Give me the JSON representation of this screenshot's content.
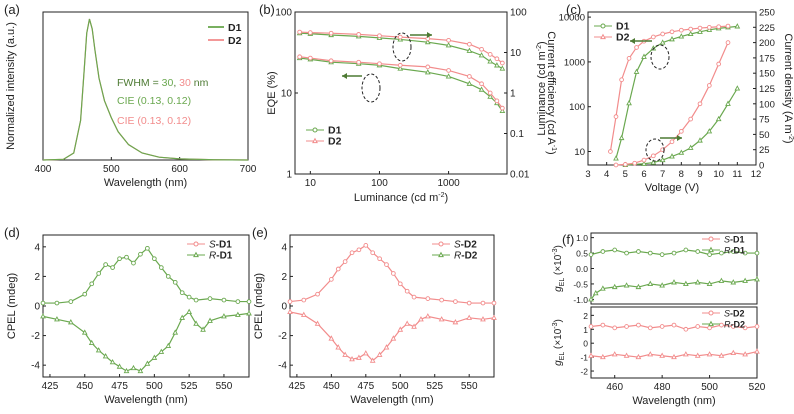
{
  "colors": {
    "d1": "#6aa84f",
    "d2": "#f28c8c",
    "ink": "#222222",
    "grid": "#999999"
  },
  "chart_data": [
    {
      "id": "a",
      "panel_label": "(a)",
      "type": "line",
      "xlabel": "Wavelength (nm)",
      "ylabel": "Normalized intensity (a.u.)",
      "xlim": [
        400,
        700
      ],
      "xticks": [
        400,
        500,
        600,
        700
      ],
      "ylim": [
        0,
        1.05
      ],
      "yticks_shown": false,
      "legend": {
        "position": "top-right",
        "entries": [
          "D1",
          "D2"
        ]
      },
      "annotations": {
        "fwhm_prefix": "FWHM = ",
        "fwhm_d1": "30",
        "fwhm_sep": ", ",
        "fwhm_d2": "30",
        "fwhm_unit": " nm",
        "cie_d1": "CIE (0.13, 0.12)",
        "cie_d2": "CIE (0.13, 0.12)"
      },
      "series": [
        {
          "name": "D1",
          "x": [
            400,
            430,
            445,
            455,
            460,
            464,
            468,
            472,
            476,
            482,
            490,
            500,
            510,
            525,
            545,
            570,
            600,
            650,
            700
          ],
          "y": [
            0,
            0.005,
            0.05,
            0.28,
            0.62,
            0.9,
            1.0,
            0.93,
            0.78,
            0.58,
            0.42,
            0.3,
            0.2,
            0.11,
            0.05,
            0.02,
            0.008,
            0.002,
            0
          ]
        },
        {
          "name": "D2",
          "x": [
            400,
            430,
            445,
            455,
            460,
            464,
            468,
            472,
            476,
            482,
            490,
            500,
            510,
            525,
            545,
            570,
            600,
            650,
            700
          ],
          "y": [
            0,
            0.005,
            0.05,
            0.28,
            0.62,
            0.9,
            1.0,
            0.93,
            0.78,
            0.58,
            0.42,
            0.3,
            0.2,
            0.11,
            0.05,
            0.02,
            0.008,
            0.002,
            0
          ]
        }
      ]
    },
    {
      "id": "b",
      "panel_label": "(b)",
      "type": "scatter",
      "xlabel": "Luminance (cd m",
      "xlabel_sup": "-2",
      "xlabel_end": ")",
      "ylabel": "EQE (%)",
      "y2label": "Current efficiency (cd A",
      "y2label_sup": "-1",
      "y2label_end": ")",
      "xscale": "log",
      "xlim": [
        6,
        7000
      ],
      "xticks": [
        10,
        100,
        1000
      ],
      "xtick_labels": [
        "10",
        "100",
        "1000"
      ],
      "yscale": "log",
      "ylim": [
        1,
        100
      ],
      "yticks": [
        1,
        10,
        100
      ],
      "ytick_labels": [
        "1",
        "10",
        "100"
      ],
      "y2scale": "log",
      "y2lim": [
        0.01,
        100
      ],
      "y2ticks": [
        0.01,
        0.1,
        1,
        10,
        100
      ],
      "y2tick_labels": [
        "0.01",
        "0.1",
        "1",
        "10",
        "100"
      ],
      "legend": {
        "position": "bottom-left",
        "entries": [
          "D1",
          "D2"
        ]
      },
      "series": [
        {
          "name": "D1",
          "axis": "y",
          "x": [
            7,
            10,
            20,
            50,
            100,
            200,
            500,
            1000,
            2000,
            3000,
            4000,
            5000,
            6000
          ],
          "y": [
            27,
            26,
            24,
            23,
            22,
            20,
            18,
            16,
            13,
            11,
            9,
            7.5,
            6
          ]
        },
        {
          "name": "D2",
          "axis": "y",
          "x": [
            7,
            10,
            20,
            50,
            100,
            200,
            500,
            1000,
            2000,
            3000,
            4000,
            5000,
            6000
          ],
          "y": [
            28,
            27,
            25,
            24,
            23,
            22,
            21,
            19,
            16,
            13,
            10,
            8,
            6.5
          ]
        },
        {
          "name": "D1",
          "axis": "y2",
          "x": [
            7,
            10,
            20,
            50,
            100,
            200,
            500,
            1000,
            2000,
            3000,
            4000,
            5000,
            6000
          ],
          "y": [
            30,
            29,
            27,
            25,
            23,
            21,
            18,
            15,
            11,
            8.5,
            6,
            4.8,
            4
          ]
        },
        {
          "name": "D2",
          "axis": "y2",
          "x": [
            7,
            10,
            20,
            50,
            100,
            200,
            500,
            1000,
            2000,
            3000,
            4000,
            5000,
            6000
          ],
          "y": [
            32,
            31,
            30,
            28,
            26,
            24,
            22,
            20,
            16,
            12,
            9,
            7,
            5.5
          ]
        }
      ]
    },
    {
      "id": "c",
      "panel_label": "(c)",
      "type": "scatter",
      "xlabel": "Voltage (V)",
      "ylabel": "Luminance (cd m",
      "ylabel_sup": "-2",
      "ylabel_end": ")",
      "y2label": "Current density (A m",
      "y2label_sup": "-2",
      "y2label_end": ")",
      "xlim": [
        3,
        12
      ],
      "xticks": [
        3,
        4,
        5,
        6,
        7,
        8,
        9,
        10,
        11,
        12
      ],
      "yscale": "log",
      "ylim": [
        5,
        13000
      ],
      "yticks": [
        10,
        100,
        1000,
        10000
      ],
      "ytick_labels": [
        "10",
        "100",
        "1000",
        "10000"
      ],
      "y2lim": [
        0,
        250
      ],
      "y2ticks": [
        0,
        25,
        50,
        75,
        100,
        125,
        150,
        175,
        200,
        225,
        250
      ],
      "legend": {
        "position": "top-left",
        "entries": [
          "D1",
          "D2"
        ]
      },
      "series": [
        {
          "name": "D1",
          "axis": "y",
          "x": [
            4.5,
            4.8,
            5.2,
            5.6,
            6,
            6.5,
            7,
            7.5,
            8,
            8.5,
            9,
            9.5,
            10,
            10.5,
            11
          ],
          "y": [
            7,
            20,
            120,
            600,
            1300,
            2000,
            2700,
            3200,
            3700,
            4200,
            4700,
            5200,
            5600,
            5900,
            6200
          ]
        },
        {
          "name": "D2",
          "axis": "y",
          "x": [
            4.2,
            4.5,
            4.8,
            5.2,
            5.6,
            6,
            6.5,
            7,
            7.5,
            8,
            8.5,
            9,
            9.5,
            10,
            10.5
          ],
          "y": [
            10,
            60,
            400,
            1200,
            2100,
            2900,
            3600,
            4200,
            4700,
            5100,
            5400,
            5700,
            5900,
            6100,
            6300
          ]
        },
        {
          "name": "D1",
          "axis": "y2",
          "x": [
            5,
            6,
            6.5,
            7,
            7.5,
            8,
            8.5,
            9,
            9.5,
            10,
            10.5,
            11
          ],
          "y": [
            0,
            2,
            4,
            8,
            14,
            20,
            28,
            40,
            55,
            75,
            100,
            125
          ]
        },
        {
          "name": "D2",
          "axis": "y2",
          "x": [
            4.5,
            5,
            5.5,
            6,
            6.5,
            7,
            7.5,
            8,
            8.5,
            9,
            9.5,
            10,
            10.5
          ],
          "y": [
            0,
            1,
            3,
            8,
            15,
            25,
            38,
            55,
            75,
            100,
            130,
            165,
            200
          ]
        }
      ]
    },
    {
      "id": "d",
      "panel_label": "(d)",
      "type": "line",
      "xlabel": "Wavelength (nm)",
      "ylabel": "CPEL (mdeg)",
      "xlim": [
        420,
        568
      ],
      "xticks": [
        425,
        450,
        475,
        500,
        525,
        550
      ],
      "ylim": [
        -4.8,
        4.8
      ],
      "yticks": [
        -4,
        -2,
        0,
        2,
        4
      ],
      "legend": {
        "position": "top-right",
        "entries": [
          {
            "italic": "S",
            "rest": "-D1"
          },
          {
            "italic": "R",
            "rest": "-D1"
          }
        ]
      },
      "series": [
        {
          "name": "S-D1",
          "x": [
            420,
            430,
            440,
            450,
            455,
            460,
            465,
            470,
            475,
            480,
            485,
            490,
            495,
            500,
            505,
            510,
            515,
            520,
            525,
            530,
            540,
            550,
            560,
            568
          ],
          "y": [
            0.2,
            0.2,
            0.3,
            0.8,
            1.5,
            2.2,
            2.8,
            2.6,
            3.2,
            3.3,
            2.9,
            3.5,
            3.9,
            3.2,
            2.6,
            2.0,
            1.6,
            0.9,
            0.6,
            0.4,
            0.5,
            0.4,
            0.3,
            0.3
          ]
        },
        {
          "name": "R-D1",
          "x": [
            420,
            430,
            440,
            450,
            455,
            460,
            465,
            470,
            475,
            480,
            485,
            490,
            495,
            500,
            505,
            510,
            515,
            520,
            525,
            530,
            535,
            540,
            550,
            560,
            568
          ],
          "y": [
            -0.7,
            -0.9,
            -1.1,
            -1.8,
            -2.5,
            -3.0,
            -3.4,
            -3.8,
            -4.1,
            -4.4,
            -4.2,
            -4.4,
            -3.9,
            -3.5,
            -3.1,
            -2.7,
            -1.8,
            -0.8,
            -0.4,
            -1.2,
            -1.6,
            -1.0,
            -0.7,
            -0.6,
            -0.5
          ]
        }
      ]
    },
    {
      "id": "e",
      "panel_label": "(e)",
      "type": "line",
      "xlabel": "Wavelength (nm)",
      "ylabel": "CPEL (mdeg)",
      "xlim": [
        420,
        568
      ],
      "xticks": [
        425,
        450,
        475,
        500,
        525,
        550
      ],
      "ylim": [
        -4.8,
        4.8
      ],
      "yticks": [
        -4,
        -2,
        0,
        2,
        4
      ],
      "legend": {
        "position": "top-right",
        "entries": [
          {
            "italic": "S",
            "rest": "-D2"
          },
          {
            "italic": "R",
            "rest": "-D2"
          }
        ]
      },
      "series": [
        {
          "name": "S-D2",
          "x": [
            420,
            430,
            440,
            450,
            455,
            460,
            465,
            470,
            475,
            480,
            485,
            490,
            495,
            500,
            505,
            510,
            520,
            530,
            540,
            550,
            560,
            568
          ],
          "y": [
            0.3,
            0.4,
            0.8,
            1.8,
            2.5,
            3.0,
            3.6,
            3.8,
            4.1,
            3.6,
            3.2,
            2.8,
            2.2,
            1.5,
            1.0,
            0.6,
            0.5,
            0.4,
            0.3,
            0.2,
            0.2,
            0.2
          ]
        },
        {
          "name": "R-D2",
          "x": [
            420,
            430,
            440,
            450,
            455,
            460,
            465,
            470,
            475,
            480,
            485,
            490,
            495,
            500,
            505,
            510,
            515,
            520,
            530,
            540,
            550,
            560,
            568
          ],
          "y": [
            -0.4,
            -0.6,
            -1.2,
            -2.2,
            -2.8,
            -3.3,
            -3.6,
            -3.5,
            -3.2,
            -3.7,
            -3.3,
            -2.8,
            -2.2,
            -1.6,
            -1.2,
            -1.4,
            -0.9,
            -0.7,
            -0.9,
            -1.1,
            -0.8,
            -0.9,
            -0.8
          ]
        }
      ]
    },
    {
      "id": "f_top",
      "panel_label": "(f)",
      "type": "line",
      "ylabel": "g",
      "ylabel_sub": "EL",
      "ylabel_suffix": " (×10",
      "ylabel_sup": "-3",
      "ylabel_end": ")",
      "xlim": [
        450,
        520
      ],
      "ylim": [
        -1.15,
        1.15
      ],
      "yticks": [
        -1.0,
        -0.5,
        0.0,
        0.5,
        1.0
      ],
      "ytick_labels": [
        "-1.0",
        "-0.5",
        "0.0",
        "0.5",
        "1.0"
      ],
      "legend": {
        "position": "top-right",
        "entries": [
          {
            "italic": "S",
            "rest": "-D1"
          },
          {
            "italic": "R",
            "rest": "-D1"
          }
        ]
      },
      "series": [
        {
          "name": "S-D1",
          "x": [
            450,
            455,
            460,
            465,
            470,
            475,
            480,
            485,
            490,
            495,
            500,
            505,
            510,
            515,
            520
          ],
          "y": [
            0.45,
            0.55,
            0.6,
            0.5,
            0.55,
            0.5,
            0.45,
            0.5,
            0.6,
            0.55,
            0.45,
            0.5,
            0.55,
            0.5,
            0.5
          ]
        },
        {
          "name": "R-D1",
          "x": [
            450,
            452,
            455,
            460,
            465,
            470,
            475,
            480,
            485,
            490,
            495,
            500,
            505,
            510,
            515,
            520
          ],
          "y": [
            -1.0,
            -0.8,
            -0.65,
            -0.6,
            -0.55,
            -0.6,
            -0.5,
            -0.55,
            -0.45,
            -0.5,
            -0.45,
            -0.5,
            -0.4,
            -0.45,
            -0.4,
            -0.35
          ]
        }
      ]
    },
    {
      "id": "f_bottom",
      "panel_label": "",
      "type": "line",
      "xlabel": "Wavelength (nm)",
      "ylabel": "g",
      "ylabel_sub": "EL",
      "ylabel_suffix": " (×10",
      "ylabel_sup": "-3",
      "ylabel_end": ")",
      "xlim": [
        450,
        520
      ],
      "xticks": [
        460,
        480,
        500,
        520
      ],
      "ylim": [
        -2.5,
        2.6
      ],
      "yticks": [
        -2,
        -1,
        0,
        1,
        2
      ],
      "legend": {
        "position": "top-right",
        "entries": [
          {
            "italic": "S",
            "rest": "-D2"
          },
          {
            "italic": "R",
            "rest": "-D2"
          }
        ]
      },
      "series": [
        {
          "name": "S-D2",
          "x": [
            450,
            455,
            460,
            465,
            470,
            475,
            480,
            485,
            490,
            495,
            500,
            505,
            510,
            515,
            520
          ],
          "y": [
            1.2,
            1.3,
            1.1,
            1.2,
            1.3,
            1.1,
            1.2,
            1.3,
            1.0,
            1.2,
            1.1,
            1.3,
            1.2,
            1.1,
            1.2
          ]
        },
        {
          "name": "R-D2",
          "x": [
            450,
            455,
            460,
            465,
            470,
            475,
            480,
            485,
            490,
            495,
            500,
            505,
            510,
            515,
            520
          ],
          "y": [
            -0.9,
            -1.0,
            -0.8,
            -0.9,
            -1.0,
            -0.8,
            -0.9,
            -1.0,
            -0.8,
            -0.9,
            -0.8,
            -0.9,
            -0.7,
            -0.8,
            -0.6
          ]
        }
      ]
    }
  ]
}
